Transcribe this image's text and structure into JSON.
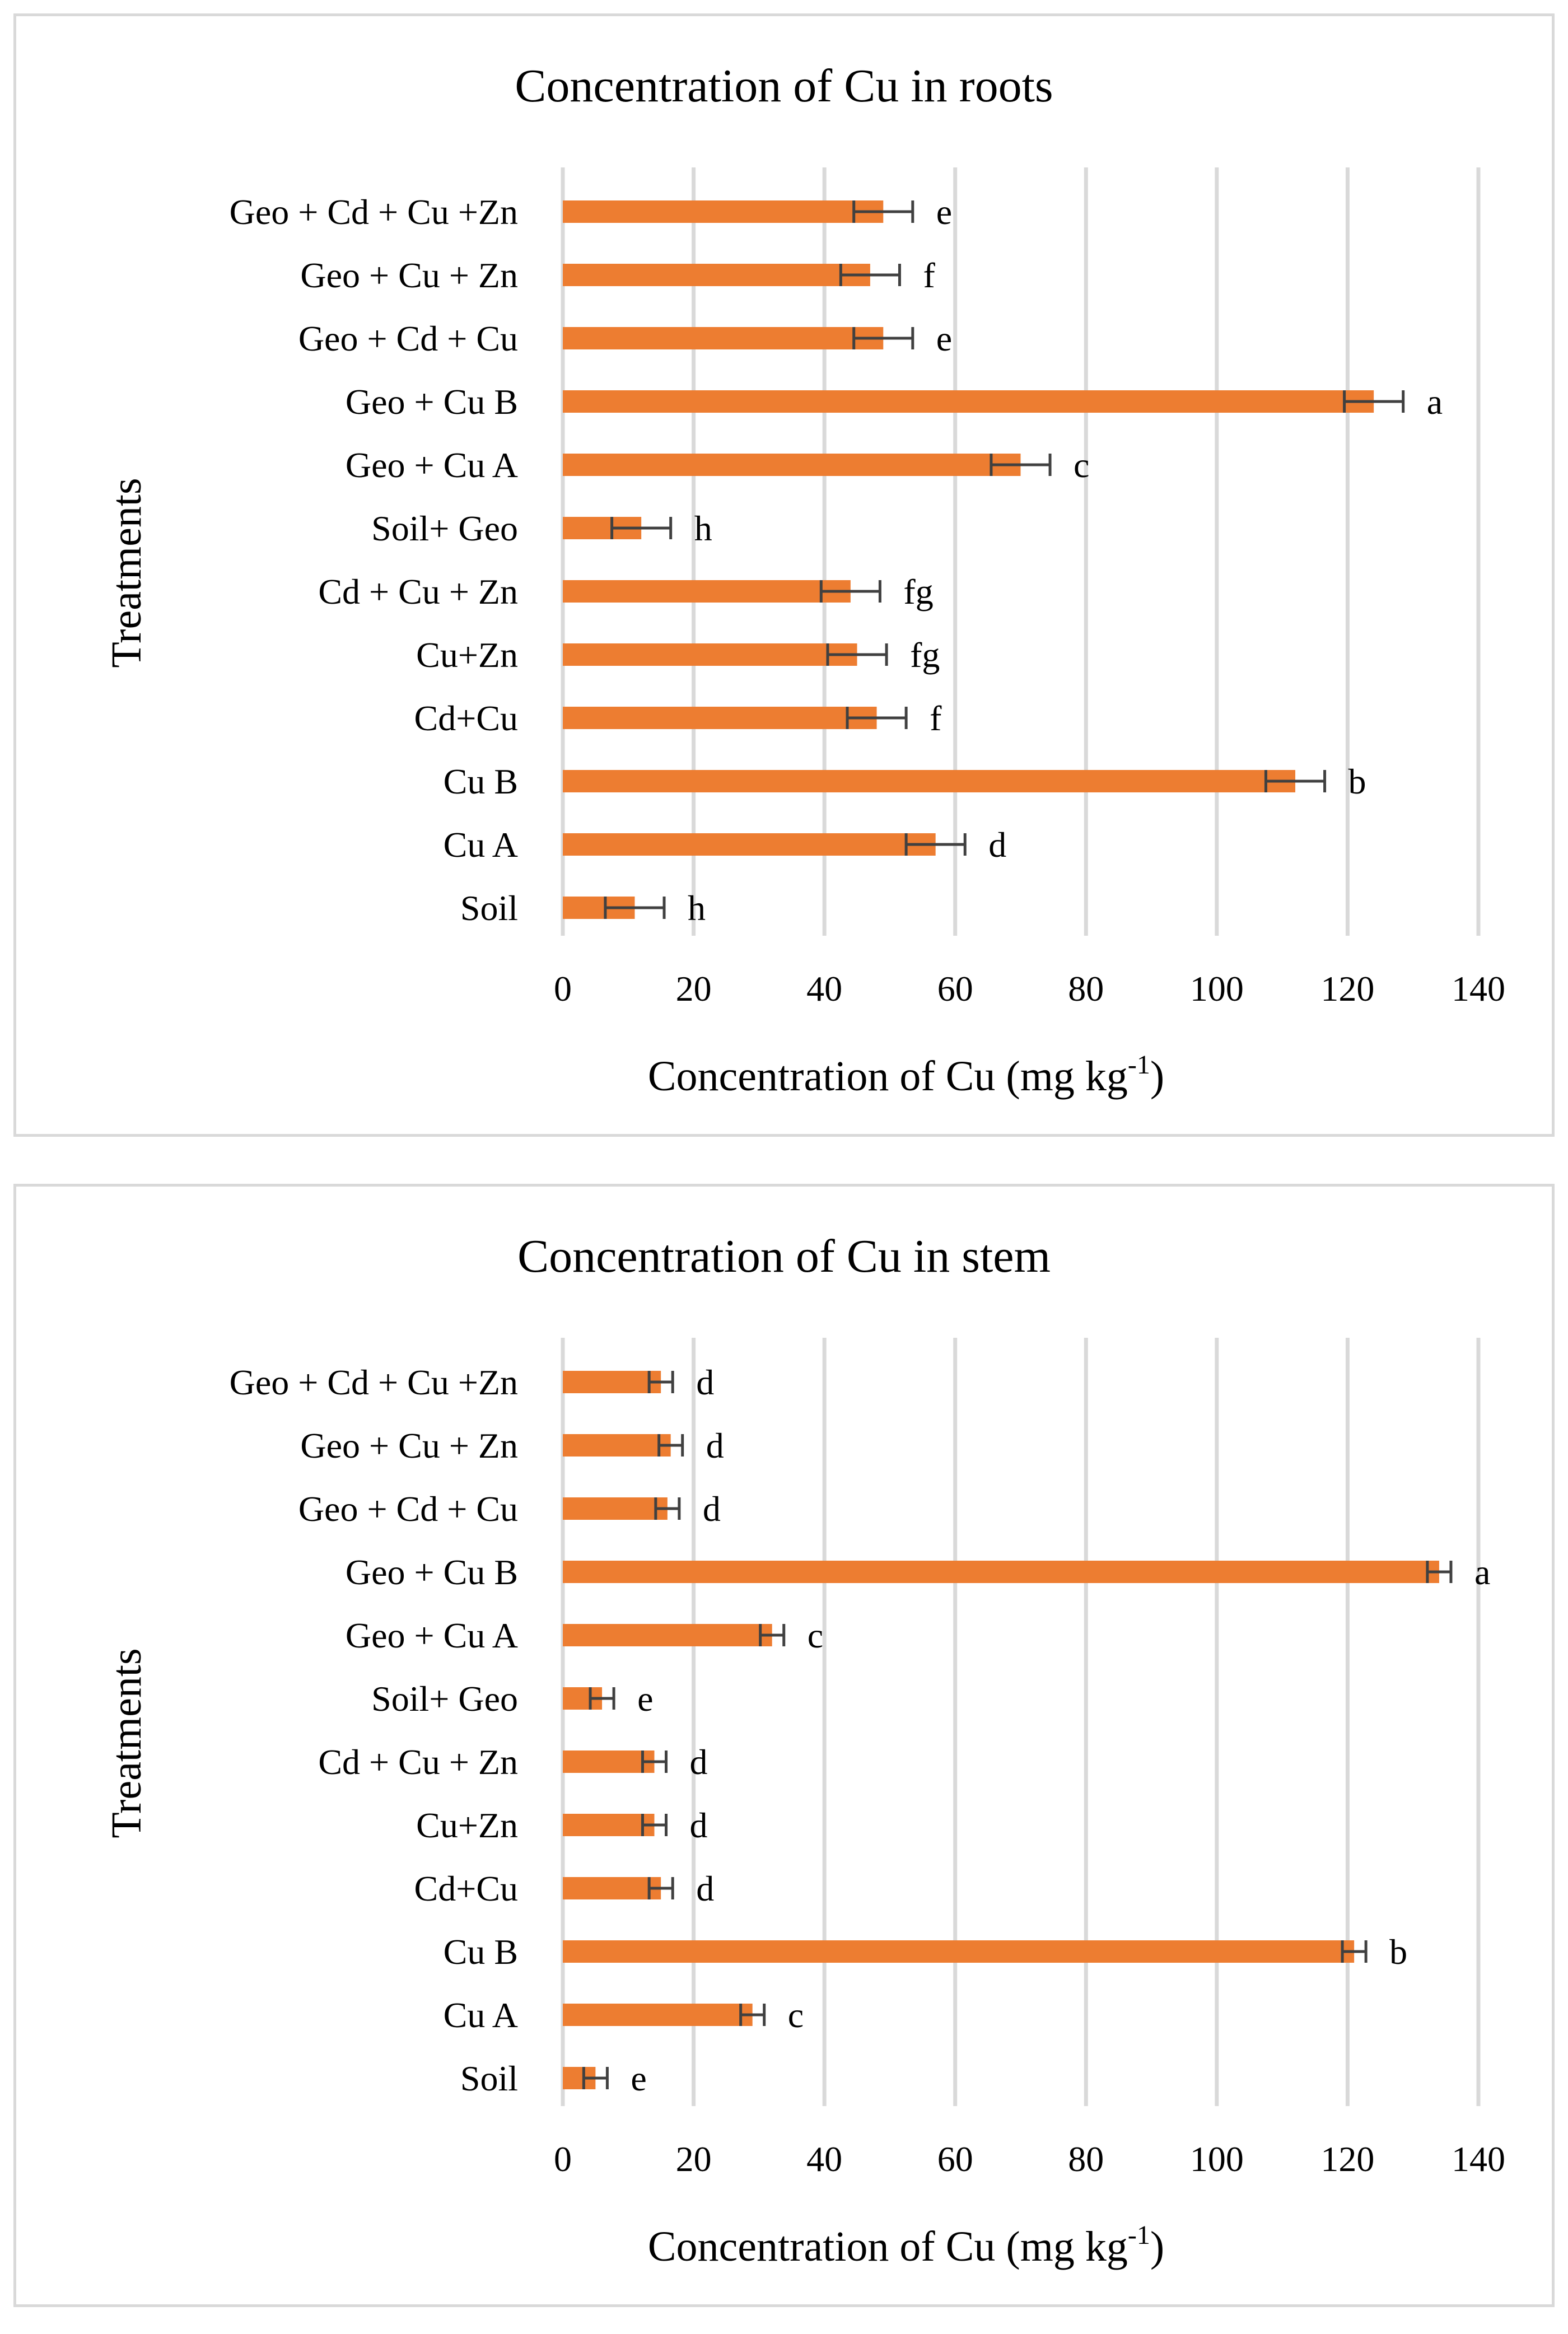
{
  "chart_data": [
    {
      "type": "bar",
      "orientation": "horizontal",
      "title": "Concentration of Cu in roots",
      "xlabel": "Concentration of Cu  (mg kg",
      "xlabel_sup": "-1",
      "xlabel_end": ")",
      "ylabel": "Treatments",
      "xlim": [
        0,
        140
      ],
      "xticks": [
        0,
        20,
        40,
        60,
        80,
        100,
        120,
        140
      ],
      "grid": true,
      "categories": [
        "Soil",
        "Cu A",
        "Cu B",
        "Cd+Cu",
        "Cu+Zn",
        "Cd + Cu + Zn",
        "Soil+  Geo",
        "Geo + Cu A",
        "Geo + Cu B",
        "Geo + Cd + Cu",
        "Geo + Cu + Zn",
        "Geo +  Cd + Cu +Zn"
      ],
      "values": [
        11,
        57,
        112,
        48,
        45,
        44,
        12,
        70,
        124,
        49,
        47,
        49
      ],
      "errors": [
        4.5,
        4.5,
        4.5,
        4.5,
        4.5,
        4.5,
        4.5,
        4.5,
        4.5,
        4.5,
        4.5,
        4.5
      ],
      "labels": [
        "h",
        "d",
        "b",
        "f",
        "fg",
        "fg",
        "h",
        "c",
        "a",
        "e",
        "f",
        "e"
      ]
    },
    {
      "type": "bar",
      "orientation": "horizontal",
      "title": "Concentration of Cu in stem",
      "xlabel": "Concentration of Cu  (mg kg",
      "xlabel_sup": "-1",
      "xlabel_end": ")",
      "ylabel": "Treatments",
      "xlim": [
        0,
        140
      ],
      "xticks": [
        0,
        20,
        40,
        60,
        80,
        100,
        120,
        140
      ],
      "grid": true,
      "categories": [
        "Soil",
        "Cu A",
        "Cu B",
        "Cd+Cu",
        "Cu+Zn",
        "Cd + Cu + Zn",
        "Soil+  Geo",
        "Geo + Cu A",
        "Geo + Cu B",
        "Geo + Cd + Cu",
        "Geo + Cu + Zn",
        "Geo +  Cd + Cu +Zn"
      ],
      "values": [
        5,
        29,
        121,
        15,
        14,
        14,
        6,
        32,
        134,
        16,
        16.5,
        15
      ],
      "errors": [
        1.8,
        1.8,
        1.8,
        1.8,
        1.8,
        1.8,
        1.8,
        1.8,
        1.8,
        1.8,
        1.8,
        1.8
      ],
      "labels": [
        "e",
        "c",
        "b",
        "d",
        "d",
        "d",
        "e",
        "c",
        "a",
        "d",
        "d",
        "d"
      ]
    }
  ],
  "colors": {
    "bar": "#ed7d31",
    "error_bar": "#404040",
    "grid": "#d9d9d9"
  }
}
